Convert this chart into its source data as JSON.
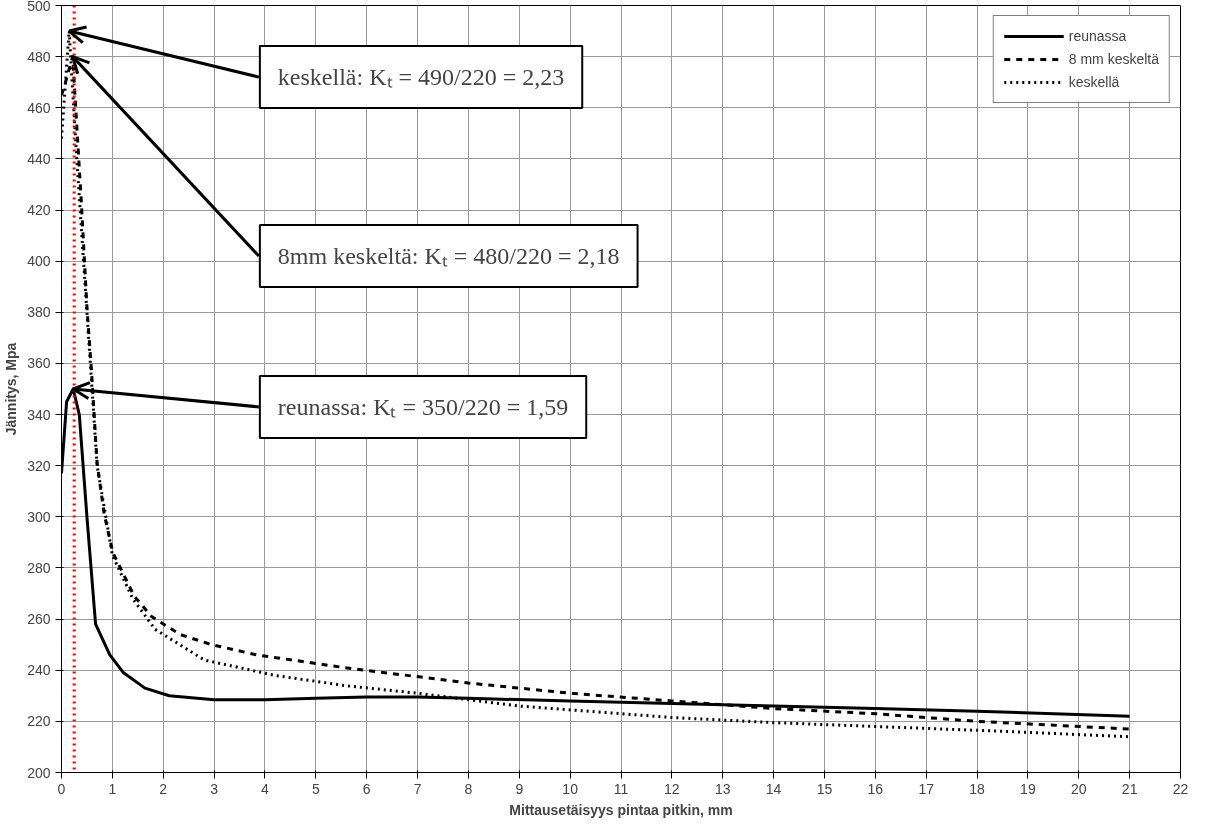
{
  "chart_data": {
    "type": "line",
    "xlabel": "Mittausetäisyys pintaa pitkin, mm",
    "ylabel": "Jännitys, Mpa",
    "xlim": [
      0,
      22
    ],
    "xticks": [
      0,
      1,
      2,
      3,
      4,
      5,
      6,
      7,
      8,
      9,
      10,
      11,
      12,
      13,
      14,
      15,
      16,
      17,
      18,
      19,
      20,
      21,
      22
    ],
    "ylim": [
      200,
      500
    ],
    "yticks": [
      200,
      220,
      240,
      260,
      280,
      300,
      320,
      340,
      360,
      380,
      400,
      420,
      440,
      460,
      480,
      500
    ],
    "grid": true,
    "legend": "top right",
    "marker": "none",
    "series": [
      {
        "name": "reunassa",
        "color": "#000000",
        "line_style": "solid",
        "x": [
          0,
          0.1,
          0.23,
          0.35,
          0.5,
          0.67,
          0.95,
          1.22,
          1.64,
          2.12,
          3,
          4,
          5,
          6,
          7,
          8,
          10,
          12,
          14,
          16,
          18,
          21
        ],
        "values": [
          317,
          345,
          350,
          340,
          300,
          258,
          246,
          239,
          233,
          230,
          228.5,
          228.5,
          229,
          229.5,
          229.5,
          229,
          228,
          227,
          226,
          225,
          224,
          222
        ]
      },
      {
        "name": "8 mm keskeltä",
        "color": "#000000",
        "line_style": "dashed",
        "x": [
          0,
          0.05,
          0.22,
          0.39,
          0.5,
          0.59,
          0.7,
          0.84,
          1.01,
          1.43,
          1.77,
          2.33,
          2.95,
          3.84,
          5.57,
          8,
          10,
          12,
          14,
          16,
          18,
          21
        ],
        "values": [
          465,
          468,
          480,
          423,
          382,
          357,
          321,
          301,
          286,
          269,
          261,
          254,
          250,
          246,
          241,
          235,
          231,
          228,
          225,
          223,
          220,
          217
        ]
      },
      {
        "name": "keskellä",
        "color": "#000000",
        "line_style": "dotted",
        "x": [
          0,
          0.15,
          0.3,
          0.5,
          0.7,
          1.0,
          1.4,
          1.84,
          2.81,
          4.19,
          5.57,
          7,
          9,
          12,
          14,
          16,
          18,
          21
        ],
        "values": [
          448,
          490,
          440,
          380,
          320,
          285,
          268,
          256,
          244,
          238,
          234,
          231,
          226,
          221.5,
          219.5,
          218,
          216.5,
          214
        ]
      }
    ],
    "ref_lines": [
      {
        "axis": "x",
        "value": 0.25,
        "color": "#ff0000",
        "line_style": "dotted"
      }
    ],
    "annotations": [
      {
        "text": "keskellä: Kₜ = 490/220 = 2,23",
        "x": 0.15,
        "y": 490
      },
      {
        "text": "8mm keskeltä: Kₜ = 480/220 = 2,18",
        "x": 0.22,
        "y": 480
      },
      {
        "text": "reunassa: Kₜ = 350/220 = 1,59",
        "x": 0.23,
        "y": 350
      }
    ]
  }
}
